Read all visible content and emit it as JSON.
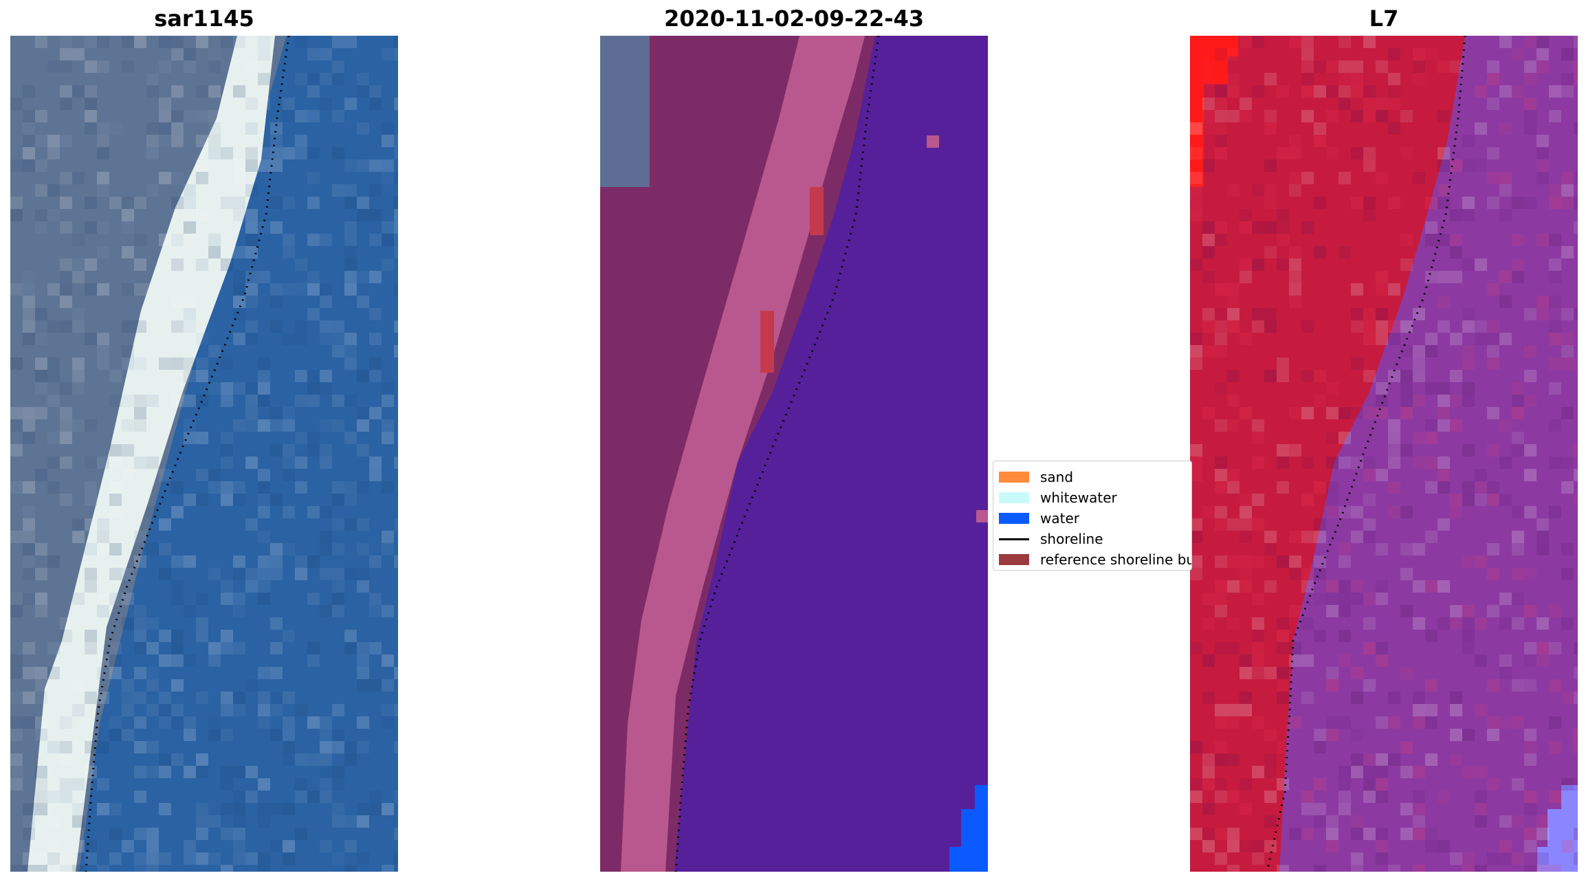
{
  "panels": [
    {
      "id": "rgb",
      "title": "sar1145"
    },
    {
      "id": "classified",
      "title": "2020-11-02-09-22-43"
    },
    {
      "id": "mndwi",
      "title": "L7"
    }
  ],
  "legend": {
    "items": [
      {
        "label": "sand",
        "color": "#ff8c3c",
        "kind": "patch"
      },
      {
        "label": "whitewater",
        "color": "#c8fafa",
        "kind": "patch"
      },
      {
        "label": "water",
        "color": "#0a5aff",
        "kind": "patch"
      },
      {
        "label": "shoreline",
        "color": "#000000",
        "kind": "line"
      },
      {
        "label": "reference shoreline buffer",
        "color": "#9b3a3f",
        "kind": "patch"
      }
    ]
  },
  "colors": {
    "rgb_land": "#5e7494",
    "rgb_whitewater": "#e6f0ee",
    "rgb_water": "#2a62a4",
    "classified_land": "#7d2b66",
    "classified_beach": "#b8588e",
    "classified_water": "#56209a",
    "classified_blue": "#0a5aff",
    "classified_red": "#c43a4c",
    "classified_topleft": "#5d6d93",
    "l7_land": "#c61b3e",
    "l7_bright": "#ff1a1a",
    "l7_water": "#8c3aa2",
    "l7_corner": "#8a86ff"
  }
}
